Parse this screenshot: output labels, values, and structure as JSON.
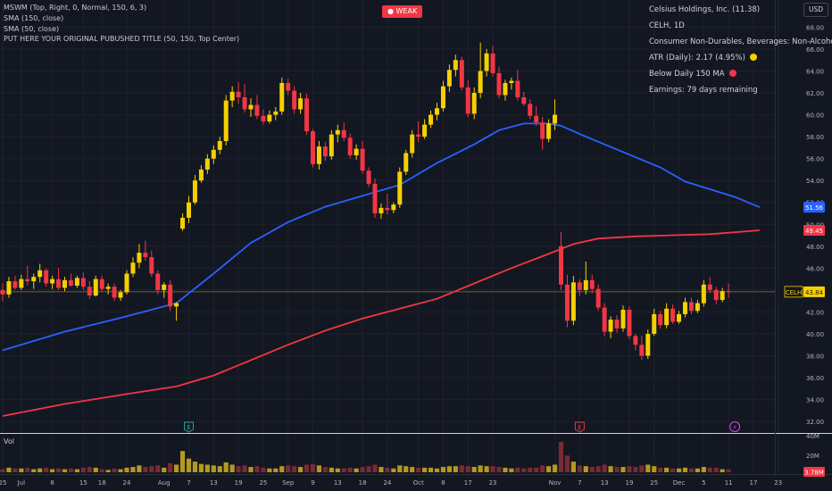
{
  "header": {
    "indicators": [
      "MSWM (Top, Right, 0, Normal, 150, 6, 3)",
      "SMA (150, close)",
      "SMA (50, close)",
      "PUT HERE YOUR ORIGINAL PUBUSHED TITLE (50, 150, Top Center)"
    ],
    "status_badge": "WEAK",
    "currency": "USD"
  },
  "info_panel": {
    "company": "Celsius Holdings, Inc. (11.38)",
    "symbol_interval": "CELH, 1D",
    "sector": "Consumer Non-Durables, Beverages: Non-Alcoholic",
    "atr": "ATR (Daily): 2.17 (4.95%)",
    "atr_dot_color": "#f5d000",
    "ma_status": "Below Daily 150 MA",
    "ma_dot_color": "#f23645",
    "earnings": "Earnings: 79 days remaining"
  },
  "price_axis": {
    "ticks": [
      "68.00",
      "66.00",
      "64.00",
      "62.00",
      "60.00",
      "58.00",
      "56.00",
      "54.00",
      "52.00",
      "50.00",
      "48.00",
      "46.00",
      "44.00",
      "42.00",
      "40.00",
      "38.00",
      "36.00",
      "34.00",
      "32.00"
    ],
    "labels": [
      {
        "text": "51.56",
        "value": 51.56,
        "color": "#2962ff"
      },
      {
        "text": "49.45",
        "value": 49.45,
        "color": "#f23645"
      },
      {
        "text": "43.84",
        "value": 43.84,
        "color": "#f5d000"
      }
    ],
    "symbol_tag": "CELH"
  },
  "volume_axis": {
    "label": "Vol",
    "ticks": [
      "40M",
      "20M"
    ],
    "current": "3.78M"
  },
  "time_axis": {
    "ticks": [
      {
        "label": "25",
        "bar": 0
      },
      {
        "label": "Jul",
        "bar": 3
      },
      {
        "label": "8",
        "bar": 8
      },
      {
        "label": "15",
        "bar": 13
      },
      {
        "label": "18",
        "bar": 16
      },
      {
        "label": "24",
        "bar": 20
      },
      {
        "label": "Aug",
        "bar": 26
      },
      {
        "label": "7",
        "bar": 30
      },
      {
        "label": "13",
        "bar": 34
      },
      {
        "label": "19",
        "bar": 38
      },
      {
        "label": "25",
        "bar": 42
      },
      {
        "label": "Sep",
        "bar": 46
      },
      {
        "label": "9",
        "bar": 50
      },
      {
        "label": "13",
        "bar": 54
      },
      {
        "label": "18",
        "bar": 58
      },
      {
        "label": "24",
        "bar": 62
      },
      {
        "label": "Oct",
        "bar": 67
      },
      {
        "label": "8",
        "bar": 71
      },
      {
        "label": "17",
        "bar": 75
      },
      {
        "label": "23",
        "bar": 79
      },
      {
        "label": "Nov",
        "bar": 89
      },
      {
        "label": "7",
        "bar": 93
      },
      {
        "label": "13",
        "bar": 97
      },
      {
        "label": "19",
        "bar": 101
      },
      {
        "label": "25",
        "bar": 105
      },
      {
        "label": "Dec",
        "bar": 109
      },
      {
        "label": "5",
        "bar": 113
      },
      {
        "label": "11",
        "bar": 117
      },
      {
        "label": "17",
        "bar": 121
      },
      {
        "label": "23",
        "bar": 125
      }
    ]
  },
  "event_markers": [
    {
      "type": "earnings",
      "label": "E",
      "bar": 30,
      "color": "#26a69a"
    },
    {
      "type": "earnings",
      "label": "E",
      "bar": 93,
      "color": "#f23645"
    },
    {
      "type": "dividend",
      "label": "⚡",
      "bar": 118,
      "color": "#e040fb"
    }
  ],
  "chart_data": {
    "type": "candlestick",
    "symbol": "CELH",
    "interval": "1D",
    "ylim": [
      32,
      69
    ],
    "volume_ylim": [
      0,
      40
    ],
    "volume_unit": "M",
    "candles": [
      {
        "o": 44.0,
        "h": 44.6,
        "l": 43.0,
        "c": 43.6,
        "v": 4
      },
      {
        "o": 43.6,
        "h": 45.2,
        "l": 43.3,
        "c": 44.8,
        "v": 6
      },
      {
        "o": 44.8,
        "h": 45.3,
        "l": 44.0,
        "c": 44.2,
        "v": 5
      },
      {
        "o": 44.2,
        "h": 45.4,
        "l": 44.0,
        "c": 45.0,
        "v": 5
      },
      {
        "o": 45.0,
        "h": 46.2,
        "l": 44.4,
        "c": 44.8,
        "v": 6
      },
      {
        "o": 44.8,
        "h": 45.5,
        "l": 44.1,
        "c": 45.2,
        "v": 4
      },
      {
        "o": 45.2,
        "h": 46.4,
        "l": 44.7,
        "c": 45.8,
        "v": 5
      },
      {
        "o": 45.8,
        "h": 46.0,
        "l": 44.3,
        "c": 44.6,
        "v": 6
      },
      {
        "o": 44.6,
        "h": 45.3,
        "l": 44.1,
        "c": 45.0,
        "v": 4
      },
      {
        "o": 45.0,
        "h": 46.0,
        "l": 44.0,
        "c": 44.2,
        "v": 5
      },
      {
        "o": 44.2,
        "h": 45.2,
        "l": 43.9,
        "c": 44.9,
        "v": 4
      },
      {
        "o": 44.9,
        "h": 45.5,
        "l": 44.3,
        "c": 44.4,
        "v": 5
      },
      {
        "o": 44.4,
        "h": 45.3,
        "l": 44.2,
        "c": 45.1,
        "v": 4
      },
      {
        "o": 45.1,
        "h": 45.6,
        "l": 44.0,
        "c": 44.3,
        "v": 6
      },
      {
        "o": 44.3,
        "h": 44.8,
        "l": 43.2,
        "c": 43.5,
        "v": 7
      },
      {
        "o": 43.5,
        "h": 45.3,
        "l": 43.4,
        "c": 45.0,
        "v": 6
      },
      {
        "o": 45.0,
        "h": 45.3,
        "l": 43.9,
        "c": 44.1,
        "v": 4
      },
      {
        "o": 44.1,
        "h": 44.6,
        "l": 43.6,
        "c": 44.3,
        "v": 3
      },
      {
        "o": 44.3,
        "h": 44.6,
        "l": 43.0,
        "c": 43.3,
        "v": 5
      },
      {
        "o": 43.3,
        "h": 44.0,
        "l": 43.0,
        "c": 43.8,
        "v": 4
      },
      {
        "o": 43.8,
        "h": 45.8,
        "l": 43.6,
        "c": 45.5,
        "v": 6
      },
      {
        "o": 45.5,
        "h": 47.0,
        "l": 45.2,
        "c": 46.5,
        "v": 7
      },
      {
        "o": 46.5,
        "h": 48.2,
        "l": 46.0,
        "c": 47.4,
        "v": 9
      },
      {
        "o": 47.4,
        "h": 48.5,
        "l": 46.7,
        "c": 47.0,
        "v": 7
      },
      {
        "o": 47.0,
        "h": 47.6,
        "l": 45.2,
        "c": 45.5,
        "v": 8
      },
      {
        "o": 45.5,
        "h": 45.8,
        "l": 43.6,
        "c": 44.0,
        "v": 9
      },
      {
        "o": 44.0,
        "h": 44.7,
        "l": 43.3,
        "c": 44.5,
        "v": 6
      },
      {
        "o": 44.5,
        "h": 44.9,
        "l": 42.1,
        "c": 42.5,
        "v": 12
      },
      {
        "o": 42.5,
        "h": 42.9,
        "l": 41.2,
        "c": 42.8,
        "v": 10
      },
      {
        "o": 49.6,
        "h": 51.0,
        "l": 49.4,
        "c": 50.6,
        "v": 28
      },
      {
        "o": 50.6,
        "h": 52.6,
        "l": 50.1,
        "c": 52.0,
        "v": 18
      },
      {
        "o": 52.0,
        "h": 54.5,
        "l": 51.8,
        "c": 54.0,
        "v": 14
      },
      {
        "o": 54.0,
        "h": 55.4,
        "l": 53.8,
        "c": 55.0,
        "v": 11
      },
      {
        "o": 55.0,
        "h": 56.4,
        "l": 54.6,
        "c": 56.0,
        "v": 10
      },
      {
        "o": 56.0,
        "h": 57.2,
        "l": 55.5,
        "c": 56.8,
        "v": 9
      },
      {
        "o": 56.8,
        "h": 58.0,
        "l": 56.4,
        "c": 57.6,
        "v": 8
      },
      {
        "o": 57.6,
        "h": 61.8,
        "l": 57.2,
        "c": 61.3,
        "v": 13
      },
      {
        "o": 61.3,
        "h": 62.6,
        "l": 60.7,
        "c": 62.1,
        "v": 10
      },
      {
        "o": 62.1,
        "h": 63.0,
        "l": 61.0,
        "c": 61.6,
        "v": 8
      },
      {
        "o": 61.6,
        "h": 62.8,
        "l": 60.2,
        "c": 60.5,
        "v": 9
      },
      {
        "o": 60.5,
        "h": 61.5,
        "l": 59.8,
        "c": 60.9,
        "v": 7
      },
      {
        "o": 60.9,
        "h": 61.8,
        "l": 59.6,
        "c": 59.9,
        "v": 8
      },
      {
        "o": 59.9,
        "h": 60.5,
        "l": 59.1,
        "c": 59.4,
        "v": 6
      },
      {
        "o": 59.4,
        "h": 60.4,
        "l": 59.2,
        "c": 60.0,
        "v": 5
      },
      {
        "o": 60.0,
        "h": 60.7,
        "l": 59.5,
        "c": 60.3,
        "v": 5
      },
      {
        "o": 60.3,
        "h": 63.4,
        "l": 60.0,
        "c": 62.9,
        "v": 8
      },
      {
        "o": 62.9,
        "h": 63.3,
        "l": 61.8,
        "c": 62.2,
        "v": 9
      },
      {
        "o": 62.2,
        "h": 62.6,
        "l": 60.1,
        "c": 60.5,
        "v": 8
      },
      {
        "o": 60.5,
        "h": 62.0,
        "l": 60.1,
        "c": 61.5,
        "v": 7
      },
      {
        "o": 61.5,
        "h": 61.9,
        "l": 58.2,
        "c": 58.5,
        "v": 10
      },
      {
        "o": 58.5,
        "h": 58.7,
        "l": 55.2,
        "c": 55.5,
        "v": 11
      },
      {
        "o": 55.5,
        "h": 57.6,
        "l": 55.0,
        "c": 57.1,
        "v": 9
      },
      {
        "o": 57.1,
        "h": 57.5,
        "l": 55.8,
        "c": 56.2,
        "v": 7
      },
      {
        "o": 56.2,
        "h": 58.6,
        "l": 55.9,
        "c": 58.2,
        "v": 6
      },
      {
        "o": 58.2,
        "h": 59.1,
        "l": 57.5,
        "c": 58.6,
        "v": 5
      },
      {
        "o": 58.6,
        "h": 59.3,
        "l": 57.6,
        "c": 57.9,
        "v": 5
      },
      {
        "o": 57.9,
        "h": 58.3,
        "l": 56.0,
        "c": 56.3,
        "v": 6
      },
      {
        "o": 56.3,
        "h": 57.3,
        "l": 55.9,
        "c": 56.9,
        "v": 5
      },
      {
        "o": 56.9,
        "h": 57.6,
        "l": 54.6,
        "c": 54.9,
        "v": 7
      },
      {
        "o": 54.9,
        "h": 55.2,
        "l": 53.4,
        "c": 53.7,
        "v": 8
      },
      {
        "o": 53.7,
        "h": 54.2,
        "l": 50.6,
        "c": 51.0,
        "v": 10
      },
      {
        "o": 51.0,
        "h": 51.9,
        "l": 50.5,
        "c": 51.5,
        "v": 7
      },
      {
        "o": 51.5,
        "h": 52.8,
        "l": 50.9,
        "c": 51.3,
        "v": 6
      },
      {
        "o": 51.3,
        "h": 52.0,
        "l": 51.0,
        "c": 51.8,
        "v": 5
      },
      {
        "o": 51.8,
        "h": 55.2,
        "l": 51.5,
        "c": 54.8,
        "v": 9
      },
      {
        "o": 54.8,
        "h": 56.8,
        "l": 54.5,
        "c": 56.5,
        "v": 8
      },
      {
        "o": 56.5,
        "h": 58.6,
        "l": 56.1,
        "c": 58.2,
        "v": 7
      },
      {
        "o": 58.2,
        "h": 59.4,
        "l": 57.5,
        "c": 58.0,
        "v": 6
      },
      {
        "o": 58.0,
        "h": 59.6,
        "l": 57.8,
        "c": 59.1,
        "v": 6
      },
      {
        "o": 59.1,
        "h": 60.4,
        "l": 58.8,
        "c": 60.0,
        "v": 6
      },
      {
        "o": 60.0,
        "h": 61.1,
        "l": 59.5,
        "c": 60.6,
        "v": 5
      },
      {
        "o": 60.6,
        "h": 63.1,
        "l": 60.3,
        "c": 62.6,
        "v": 7
      },
      {
        "o": 62.6,
        "h": 64.6,
        "l": 62.1,
        "c": 64.1,
        "v": 8
      },
      {
        "o": 64.1,
        "h": 65.5,
        "l": 63.5,
        "c": 65.0,
        "v": 8
      },
      {
        "o": 65.0,
        "h": 65.3,
        "l": 62.2,
        "c": 62.5,
        "v": 9
      },
      {
        "o": 62.5,
        "h": 63.2,
        "l": 59.8,
        "c": 60.1,
        "v": 8
      },
      {
        "o": 60.1,
        "h": 62.5,
        "l": 59.6,
        "c": 62.0,
        "v": 7
      },
      {
        "o": 62.0,
        "h": 66.6,
        "l": 61.5,
        "c": 64.0,
        "v": 9
      },
      {
        "o": 64.0,
        "h": 66.0,
        "l": 63.5,
        "c": 65.6,
        "v": 8
      },
      {
        "o": 65.6,
        "h": 66.3,
        "l": 63.5,
        "c": 63.8,
        "v": 8
      },
      {
        "o": 63.8,
        "h": 64.4,
        "l": 61.5,
        "c": 61.8,
        "v": 7
      },
      {
        "o": 61.8,
        "h": 63.2,
        "l": 61.3,
        "c": 62.9,
        "v": 6
      },
      {
        "o": 62.9,
        "h": 63.4,
        "l": 62.3,
        "c": 63.1,
        "v": 5
      },
      {
        "o": 63.1,
        "h": 64.1,
        "l": 61.3,
        "c": 61.6,
        "v": 6
      },
      {
        "o": 61.6,
        "h": 62.1,
        "l": 60.8,
        "c": 61.0,
        "v": 5
      },
      {
        "o": 61.0,
        "h": 61.4,
        "l": 59.6,
        "c": 59.9,
        "v": 6
      },
      {
        "o": 59.9,
        "h": 60.8,
        "l": 59.0,
        "c": 59.3,
        "v": 6
      },
      {
        "o": 59.3,
        "h": 59.8,
        "l": 56.8,
        "c": 57.8,
        "v": 9
      },
      {
        "o": 57.8,
        "h": 59.6,
        "l": 57.5,
        "c": 59.2,
        "v": 8
      },
      {
        "o": 59.2,
        "h": 61.4,
        "l": 58.6,
        "c": 60.0,
        "v": 10
      },
      {
        "o": 48.0,
        "h": 49.3,
        "l": 44.0,
        "c": 44.5,
        "v": 40
      },
      {
        "o": 44.5,
        "h": 45.4,
        "l": 40.6,
        "c": 41.2,
        "v": 22
      },
      {
        "o": 41.2,
        "h": 45.3,
        "l": 40.8,
        "c": 44.7,
        "v": 14
      },
      {
        "o": 44.7,
        "h": 45.0,
        "l": 43.5,
        "c": 44.0,
        "v": 9
      },
      {
        "o": 44.0,
        "h": 46.6,
        "l": 43.6,
        "c": 44.9,
        "v": 8
      },
      {
        "o": 44.9,
        "h": 45.4,
        "l": 43.7,
        "c": 44.1,
        "v": 7
      },
      {
        "o": 44.1,
        "h": 44.5,
        "l": 42.1,
        "c": 42.4,
        "v": 8
      },
      {
        "o": 42.4,
        "h": 42.8,
        "l": 39.8,
        "c": 40.2,
        "v": 10
      },
      {
        "o": 40.2,
        "h": 41.6,
        "l": 39.6,
        "c": 41.3,
        "v": 8
      },
      {
        "o": 41.3,
        "h": 41.7,
        "l": 40.1,
        "c": 40.5,
        "v": 7
      },
      {
        "o": 40.5,
        "h": 42.6,
        "l": 40.2,
        "c": 42.2,
        "v": 7
      },
      {
        "o": 42.2,
        "h": 42.5,
        "l": 39.5,
        "c": 39.8,
        "v": 8
      },
      {
        "o": 39.8,
        "h": 40.0,
        "l": 38.5,
        "c": 39.0,
        "v": 7
      },
      {
        "o": 39.0,
        "h": 39.8,
        "l": 37.6,
        "c": 38.0,
        "v": 9
      },
      {
        "o": 38.0,
        "h": 40.4,
        "l": 37.7,
        "c": 40.0,
        "v": 10
      },
      {
        "o": 40.0,
        "h": 42.3,
        "l": 39.8,
        "c": 41.8,
        "v": 8
      },
      {
        "o": 41.8,
        "h": 42.1,
        "l": 40.5,
        "c": 40.8,
        "v": 6
      },
      {
        "o": 40.8,
        "h": 42.8,
        "l": 40.5,
        "c": 42.3,
        "v": 6
      },
      {
        "o": 42.3,
        "h": 42.7,
        "l": 40.9,
        "c": 41.1,
        "v": 5
      },
      {
        "o": 41.1,
        "h": 42.1,
        "l": 40.9,
        "c": 41.8,
        "v": 5
      },
      {
        "o": 41.8,
        "h": 43.3,
        "l": 41.5,
        "c": 42.9,
        "v": 6
      },
      {
        "o": 42.9,
        "h": 43.3,
        "l": 41.8,
        "c": 42.1,
        "v": 5
      },
      {
        "o": 42.1,
        "h": 43.1,
        "l": 41.9,
        "c": 42.8,
        "v": 5
      },
      {
        "o": 42.8,
        "h": 44.9,
        "l": 42.5,
        "c": 44.5,
        "v": 7
      },
      {
        "o": 44.5,
        "h": 45.2,
        "l": 43.7,
        "c": 44.0,
        "v": 6
      },
      {
        "o": 44.0,
        "h": 44.3,
        "l": 42.7,
        "c": 43.1,
        "v": 6
      },
      {
        "o": 43.1,
        "h": 44.2,
        "l": 42.9,
        "c": 43.9,
        "v": 4
      },
      {
        "o": 43.9,
        "h": 44.6,
        "l": 43.3,
        "c": 43.84,
        "v": 3.78
      }
    ],
    "series": [
      {
        "name": "SMA (50, close)",
        "color": "#2962ff",
        "points": [
          [
            0,
            38.5
          ],
          [
            10,
            40.2
          ],
          [
            20,
            41.6
          ],
          [
            28,
            42.8
          ],
          [
            34,
            45.5
          ],
          [
            40,
            48.3
          ],
          [
            46,
            50.2
          ],
          [
            52,
            51.6
          ],
          [
            58,
            52.6
          ],
          [
            64,
            53.6
          ],
          [
            70,
            55.6
          ],
          [
            76,
            57.3
          ],
          [
            80,
            58.6
          ],
          [
            84,
            59.2
          ],
          [
            88,
            59.2
          ],
          [
            90,
            59.0
          ],
          [
            94,
            58.0
          ],
          [
            100,
            56.6
          ],
          [
            106,
            55.2
          ],
          [
            110,
            53.9
          ],
          [
            114,
            53.2
          ],
          [
            118,
            52.5
          ],
          [
            122,
            51.56
          ]
        ]
      },
      {
        "name": "SMA (150, close)",
        "color": "#f23645",
        "points": [
          [
            0,
            32.5
          ],
          [
            10,
            33.6
          ],
          [
            20,
            34.5
          ],
          [
            28,
            35.2
          ],
          [
            34,
            36.2
          ],
          [
            40,
            37.6
          ],
          [
            46,
            39.0
          ],
          [
            52,
            40.3
          ],
          [
            58,
            41.4
          ],
          [
            64,
            42.3
          ],
          [
            70,
            43.2
          ],
          [
            76,
            44.6
          ],
          [
            82,
            46.0
          ],
          [
            88,
            47.3
          ],
          [
            92,
            48.2
          ],
          [
            96,
            48.7
          ],
          [
            102,
            48.9
          ],
          [
            108,
            49.0
          ],
          [
            114,
            49.1
          ],
          [
            122,
            49.45
          ]
        ]
      }
    ],
    "last_price": 43.84
  },
  "colors": {
    "up": "#f5d000",
    "down": "#f23645",
    "bg": "#131722",
    "grid": "#1e222d",
    "text": "#b2b5be"
  }
}
